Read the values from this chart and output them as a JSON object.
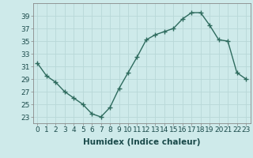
{
  "x": [
    0,
    1,
    2,
    3,
    4,
    5,
    6,
    7,
    8,
    9,
    10,
    11,
    12,
    13,
    14,
    15,
    16,
    17,
    18,
    19,
    20,
    21,
    22,
    23
  ],
  "y": [
    31.5,
    29.5,
    28.5,
    27,
    26,
    25,
    23.5,
    23,
    24.5,
    27.5,
    30,
    32.5,
    35.2,
    36,
    36.5,
    37,
    38.5,
    39.5,
    39.5,
    37.5,
    35.2,
    35,
    30,
    29
  ],
  "xlabel": "Humidex (Indice chaleur)",
  "ylim": [
    22,
    41
  ],
  "xlim": [
    -0.5,
    23.5
  ],
  "yticks": [
    23,
    25,
    27,
    29,
    31,
    33,
    35,
    37,
    39
  ],
  "xticks": [
    0,
    1,
    2,
    3,
    4,
    5,
    6,
    7,
    8,
    9,
    10,
    11,
    12,
    13,
    14,
    15,
    16,
    17,
    18,
    19,
    20,
    21,
    22,
    23
  ],
  "xtick_labels": [
    "0",
    "1",
    "2",
    "3",
    "4",
    "5",
    "6",
    "7",
    "8",
    "9",
    "10",
    "11",
    "12",
    "13",
    "14",
    "15",
    "16",
    "17",
    "18",
    "19",
    "20",
    "21",
    "22",
    "23"
  ],
  "line_color": "#2e6b5e",
  "marker": "+",
  "marker_size": 4,
  "bg_color": "#ceeaea",
  "grid_color": "#b8d8d8",
  "line_width": 1.0,
  "xlabel_fontsize": 7.5,
  "tick_fontsize": 6.5,
  "fig_bg": "#ceeaea"
}
